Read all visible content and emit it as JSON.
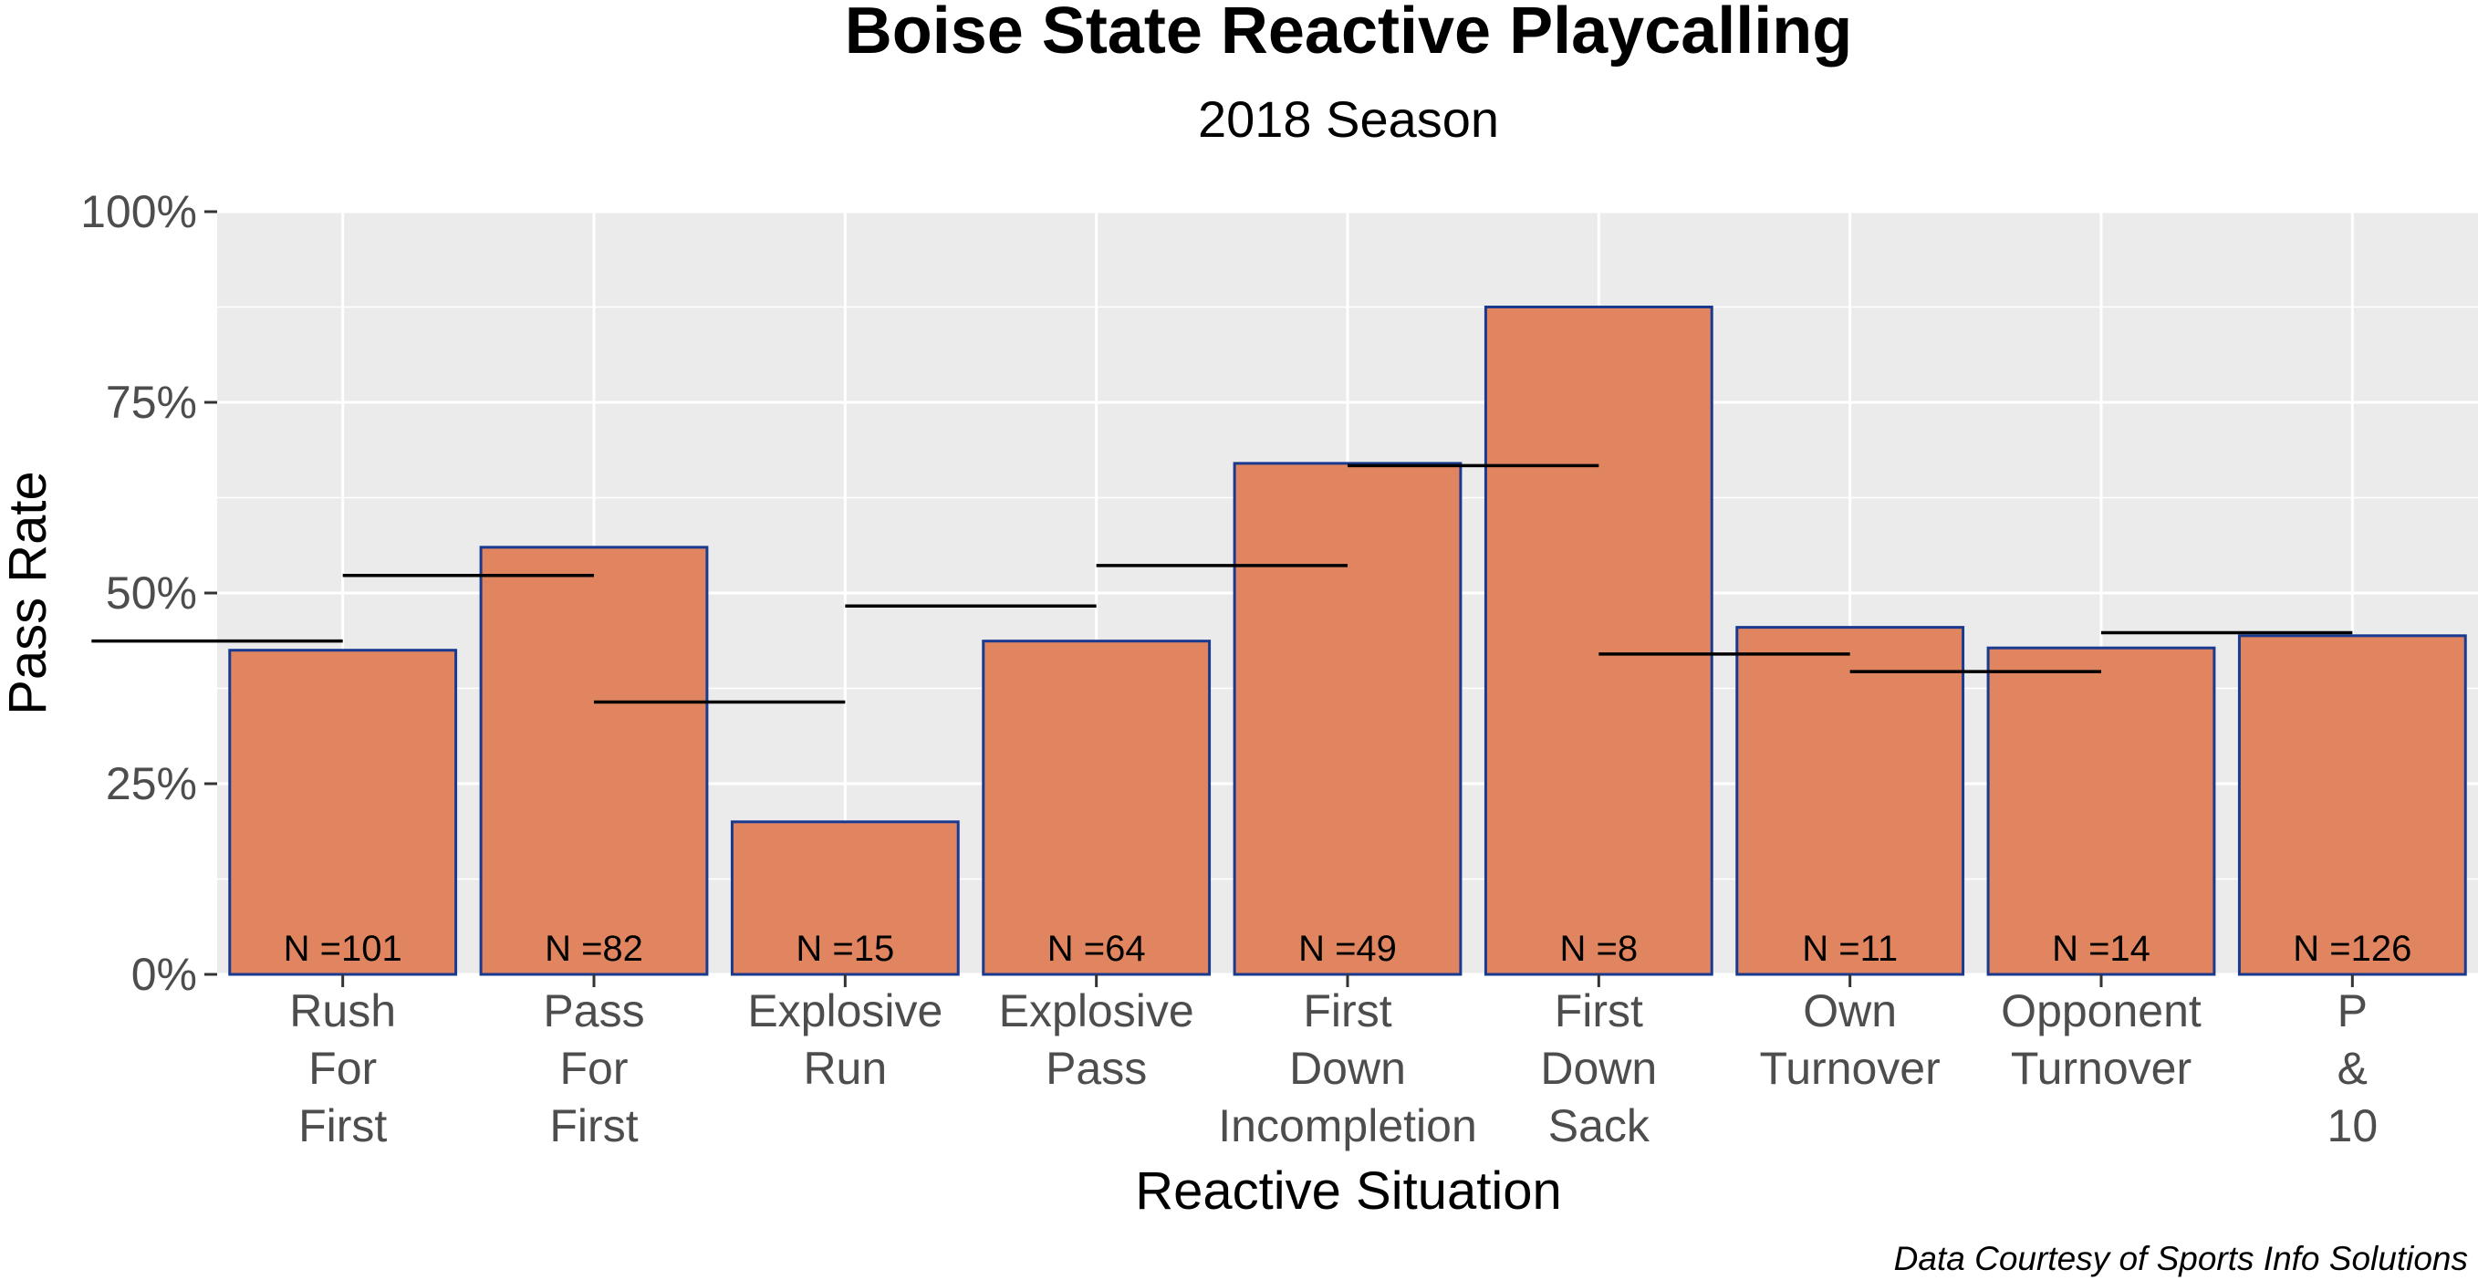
{
  "chart_data": {
    "type": "bar",
    "title": "Boise State Reactive Playcalling",
    "subtitle": "2018 Season",
    "xlabel": "Reactive Situation",
    "ylabel": "Pass Rate",
    "caption": "Data Courtesy of Sports Info Solutions",
    "ylim": [
      0,
      1
    ],
    "yticks": [
      0,
      0.25,
      0.5,
      0.75,
      1
    ],
    "ytick_labels": [
      "0%",
      "25%",
      "50%",
      "75%",
      "100%"
    ],
    "grid": true,
    "categories": [
      [
        "Rush",
        "For",
        "First"
      ],
      [
        "Pass",
        "For",
        "First"
      ],
      [
        "Explosive",
        "Run"
      ],
      [
        "Explosive",
        "Pass"
      ],
      [
        "First",
        "Down",
        "Incompletion"
      ],
      [
        "First",
        "Down",
        "Sack"
      ],
      [
        "Own",
        "Turnover"
      ],
      [
        "Opponent",
        "Turnover"
      ],
      [
        "P",
        "&",
        "10"
      ]
    ],
    "values": [
      0.425,
      0.56,
      0.2,
      0.437,
      0.67,
      0.875,
      0.455,
      0.428,
      0.444
    ],
    "reference_values": [
      0.437,
      0.523,
      0.357,
      0.483,
      0.536,
      0.667,
      0.42,
      0.397,
      0.448
    ],
    "n_labels": [
      "N =101",
      "N =82",
      "N =15",
      "N =64",
      "N =49",
      "N =8",
      "N =11",
      "N =14",
      "N =126"
    ],
    "colors": {
      "bar_fill": "#e0855f",
      "bar_stroke": "#1a3a8f",
      "panel_bg": "#ebebeb",
      "grid": "#ffffff",
      "reference_line": "#000000"
    }
  }
}
